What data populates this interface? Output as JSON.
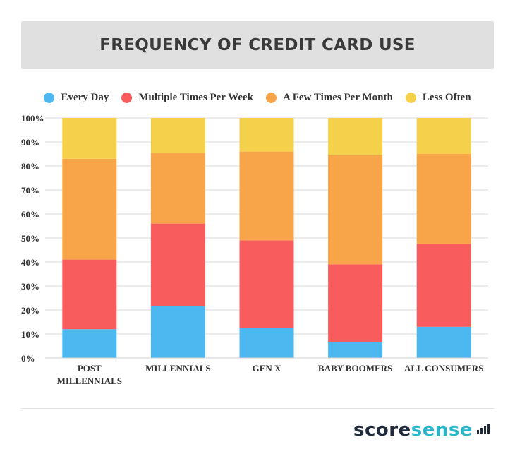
{
  "title": "FREQUENCY OF CREDIT CARD USE",
  "brand": {
    "score": "score",
    "sense": "sense"
  },
  "colors": {
    "every_day": "#4db8f0",
    "multiple": "#f85c5c",
    "few": "#f8a549",
    "less": "#f5d04a",
    "title_bg": "#e0e0e0",
    "grid": "#d9d9d9"
  },
  "chart_data": {
    "type": "bar",
    "stacked": true,
    "title": "FREQUENCY OF CREDIT CARD USE",
    "categories": [
      "POST MILLENNIALS",
      "MILLENNIALS",
      "GEN X",
      "BABY BOOMERS",
      "ALL CONSUMERS"
    ],
    "category_lines": [
      [
        "POST",
        "MILLENNIALS"
      ],
      [
        "MILLENNIALS"
      ],
      [
        "GEN X"
      ],
      [
        "BABY BOOMERS"
      ],
      [
        "ALL CONSUMERS"
      ]
    ],
    "series": [
      {
        "name": "Every Day",
        "color": "#4db8f0",
        "values": [
          12,
          21.5,
          12.5,
          6.5,
          13
        ]
      },
      {
        "name": "Multiple Times Per Week",
        "color": "#f85c5c",
        "values": [
          29,
          34.5,
          36.5,
          32.5,
          34.5
        ]
      },
      {
        "name": "A Few Times Per Month",
        "color": "#f8a549",
        "values": [
          42,
          29.5,
          37,
          45.5,
          37.5
        ]
      },
      {
        "name": "Less Often",
        "color": "#f5d04a",
        "values": [
          17,
          14.5,
          14,
          15.5,
          15
        ]
      }
    ],
    "yticks": [
      "0%",
      "10%",
      "20%",
      "30%",
      "40%",
      "50%",
      "60%",
      "70%",
      "80%",
      "90%",
      "100%"
    ],
    "ylim": [
      0,
      100
    ],
    "grid": true,
    "legend": "top"
  }
}
